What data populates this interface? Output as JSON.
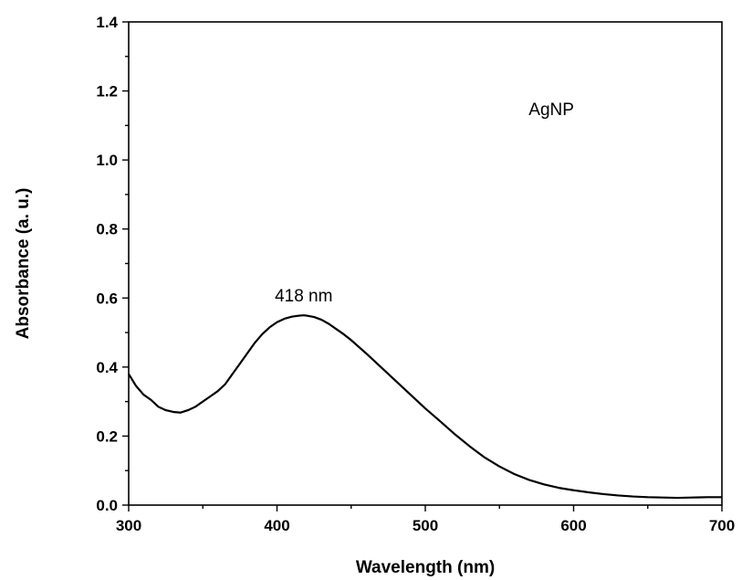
{
  "chart_data": {
    "type": "line",
    "xlabel": "Wavelength (nm)",
    "ylabel": "Absorbance (a. u.)",
    "xlim": [
      300,
      700
    ],
    "ylim": [
      0.0,
      1.4
    ],
    "x_ticks": [
      300,
      400,
      500,
      600,
      700
    ],
    "x_tick_labels": [
      "300",
      "400",
      "500",
      "600",
      "700"
    ],
    "y_ticks": [
      0.0,
      0.2,
      0.4,
      0.6,
      0.8,
      1.0,
      1.2,
      1.4
    ],
    "y_tick_labels": [
      "0.0",
      "0.2",
      "0.4",
      "0.6",
      "0.8",
      "1.0",
      "1.2",
      "1.4"
    ],
    "grid": false,
    "line_color": "#000000",
    "annotations": [
      {
        "text": "AgNP",
        "x": 585,
        "y": 1.13
      },
      {
        "text": "418 nm",
        "x": 418,
        "y": 0.59
      }
    ],
    "series": [
      {
        "x": [
          300,
          305,
          310,
          315,
          320,
          325,
          330,
          335,
          340,
          345,
          350,
          355,
          360,
          365,
          370,
          375,
          380,
          385,
          390,
          395,
          400,
          405,
          410,
          415,
          418,
          420,
          425,
          430,
          435,
          440,
          445,
          450,
          460,
          470,
          480,
          490,
          500,
          510,
          520,
          530,
          540,
          550,
          560,
          570,
          580,
          590,
          600,
          610,
          620,
          630,
          640,
          650,
          660,
          670,
          680,
          690,
          700
        ],
        "y": [
          0.38,
          0.345,
          0.32,
          0.305,
          0.285,
          0.275,
          0.27,
          0.268,
          0.275,
          0.285,
          0.3,
          0.315,
          0.33,
          0.35,
          0.38,
          0.41,
          0.44,
          0.47,
          0.495,
          0.515,
          0.53,
          0.54,
          0.546,
          0.549,
          0.55,
          0.549,
          0.545,
          0.537,
          0.525,
          0.51,
          0.495,
          0.478,
          0.44,
          0.4,
          0.36,
          0.32,
          0.28,
          0.243,
          0.205,
          0.17,
          0.138,
          0.112,
          0.09,
          0.073,
          0.06,
          0.05,
          0.043,
          0.037,
          0.032,
          0.028,
          0.025,
          0.023,
          0.022,
          0.021,
          0.022,
          0.023,
          0.023
        ]
      }
    ]
  }
}
